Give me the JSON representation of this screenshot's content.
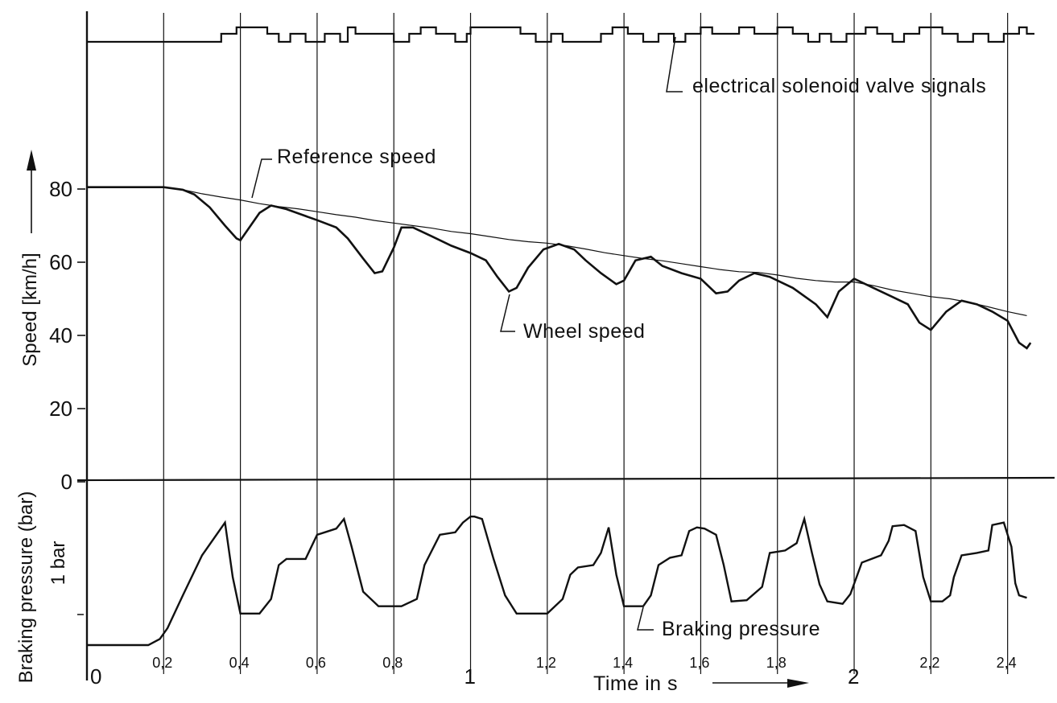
{
  "chart_data": {
    "type": "line",
    "title": "",
    "xlabel": "Time in s",
    "xlim": [
      0,
      2.47
    ],
    "x_ticks_small": [
      {
        "v": 0.2,
        "label": "0,2"
      },
      {
        "v": 0.4,
        "label": "0,4"
      },
      {
        "v": 0.6,
        "label": "0,6"
      },
      {
        "v": 0.8,
        "label": "0,8"
      },
      {
        "v": 1.2,
        "label": "1,2"
      },
      {
        "v": 1.4,
        "label": "1,4"
      },
      {
        "v": 1.6,
        "label": "1,6"
      },
      {
        "v": 1.8,
        "label": "1,8"
      },
      {
        "v": 2.2,
        "label": "2,2"
      },
      {
        "v": 2.4,
        "label": "2,4"
      }
    ],
    "x_ticks_big": [
      {
        "v": 0,
        "label": "0"
      },
      {
        "v": 1,
        "label": "1"
      },
      {
        "v": 2,
        "label": "2"
      }
    ],
    "speed_axis": {
      "label": "Speed [km/h]",
      "ylim": [
        0,
        80
      ],
      "ticks": [
        {
          "v": 0,
          "label": "0"
        },
        {
          "v": 20,
          "label": "20"
        },
        {
          "v": 40,
          "label": "40"
        },
        {
          "v": 60,
          "label": "60"
        },
        {
          "v": 80,
          "label": "80"
        }
      ]
    },
    "pressure_axis": {
      "label": "Braking pressure (bar)",
      "tick_label": "1 bar",
      "tick_value": 1,
      "ylim": [
        0,
        1.3
      ]
    },
    "grid": true,
    "annotations": {
      "valve": "electrical solenoid valve signals",
      "reference": "Reference speed",
      "wheel": "Wheel speed",
      "pressure": "Braking pressure"
    },
    "series": [
      {
        "name": "Reference speed",
        "axis": "speed",
        "x": [
          0,
          0.2,
          0.25,
          0.3,
          0.35,
          0.4,
          0.45,
          0.5,
          0.55,
          0.6,
          0.65,
          0.7,
          0.75,
          0.8,
          0.85,
          0.9,
          0.95,
          1.0,
          1.05,
          1.1,
          1.15,
          1.2,
          1.25,
          1.3,
          1.35,
          1.4,
          1.45,
          1.5,
          1.55,
          1.6,
          1.65,
          1.7,
          1.75,
          1.8,
          1.85,
          1.9,
          1.95,
          2.0,
          2.05,
          2.1,
          2.15,
          2.2,
          2.25,
          2.3,
          2.35,
          2.4,
          2.45
        ],
        "values": [
          80.5,
          80.5,
          79.8,
          78.7,
          77.8,
          77.0,
          76.0,
          75.2,
          74.6,
          73.8,
          73.0,
          72.3,
          71.4,
          70.7,
          70.0,
          69.3,
          68.4,
          67.8,
          67.0,
          66.2,
          65.6,
          65.2,
          64.5,
          63.6,
          62.6,
          61.8,
          61.0,
          60.4,
          59.6,
          58.8,
          58.0,
          57.4,
          57.2,
          56.5,
          55.6,
          55.0,
          54.6,
          54.6,
          53.6,
          52.4,
          51.5,
          50.6,
          50.0,
          49.0,
          47.8,
          46.5,
          45.4
        ]
      },
      {
        "name": "Wheel speed",
        "axis": "speed",
        "x": [
          0,
          0.2,
          0.25,
          0.28,
          0.32,
          0.36,
          0.39,
          0.4,
          0.42,
          0.45,
          0.48,
          0.52,
          0.56,
          0.6,
          0.65,
          0.68,
          0.72,
          0.75,
          0.77,
          0.8,
          0.82,
          0.85,
          0.9,
          0.95,
          1.0,
          1.04,
          1.07,
          1.1,
          1.12,
          1.15,
          1.19,
          1.23,
          1.27,
          1.3,
          1.34,
          1.38,
          1.4,
          1.43,
          1.47,
          1.5,
          1.55,
          1.6,
          1.64,
          1.67,
          1.7,
          1.74,
          1.78,
          1.84,
          1.9,
          1.93,
          1.96,
          2.0,
          2.05,
          2.1,
          2.14,
          2.17,
          2.2,
          2.24,
          2.28,
          2.32,
          2.36,
          2.4,
          2.43,
          2.45,
          2.46
        ],
        "values": [
          80.5,
          80.5,
          79.8,
          78.5,
          75.0,
          70.0,
          66.5,
          66.0,
          69.0,
          73.5,
          75.5,
          74.5,
          73.0,
          71.5,
          69.5,
          66.5,
          61.0,
          57.0,
          57.5,
          64.0,
          69.5,
          69.5,
          67.0,
          64.5,
          62.5,
          60.5,
          56.0,
          52.0,
          53.0,
          58.5,
          63.5,
          65.0,
          63.5,
          60.5,
          57.0,
          54.0,
          55.0,
          60.5,
          61.5,
          59.0,
          57.0,
          55.5,
          51.5,
          52.0,
          55.0,
          57.0,
          56.0,
          53.0,
          48.5,
          45.0,
          52.0,
          55.5,
          53.0,
          50.5,
          48.5,
          43.5,
          41.5,
          46.5,
          49.5,
          48.5,
          46.5,
          44.0,
          38.0,
          36.5,
          38.0
        ]
      },
      {
        "name": "Braking pressure",
        "axis": "pressure",
        "x": [
          0,
          0.16,
          0.19,
          0.21,
          0.25,
          0.3,
          0.36,
          0.38,
          0.4,
          0.45,
          0.48,
          0.5,
          0.52,
          0.57,
          0.6,
          0.62,
          0.65,
          0.67,
          0.69,
          0.72,
          0.76,
          0.82,
          0.86,
          0.88,
          0.92,
          0.96,
          0.98,
          1.0,
          1.01,
          1.03,
          1.06,
          1.09,
          1.12,
          1.2,
          1.24,
          1.26,
          1.28,
          1.32,
          1.34,
          1.36,
          1.38,
          1.4,
          1.45,
          1.47,
          1.49,
          1.52,
          1.55,
          1.57,
          1.59,
          1.61,
          1.64,
          1.66,
          1.68,
          1.72,
          1.76,
          1.78,
          1.82,
          1.85,
          1.87,
          1.89,
          1.91,
          1.93,
          1.97,
          1.99,
          2.02,
          2.07,
          2.09,
          2.1,
          2.13,
          2.16,
          2.18,
          2.2,
          2.23,
          2.25,
          2.26,
          2.28,
          2.32,
          2.35,
          2.36,
          2.39,
          2.41,
          2.42,
          2.43,
          2.45
        ],
        "values": [
          0.04,
          0.04,
          0.09,
          0.18,
          0.45,
          0.78,
          1.05,
          0.6,
          0.3,
          0.3,
          0.42,
          0.7,
          0.75,
          0.75,
          0.95,
          0.97,
          1.0,
          1.08,
          0.85,
          0.48,
          0.36,
          0.36,
          0.42,
          0.7,
          0.95,
          0.97,
          1.05,
          1.1,
          1.1,
          1.08,
          0.75,
          0.45,
          0.3,
          0.3,
          0.42,
          0.62,
          0.68,
          0.7,
          0.8,
          1.01,
          0.62,
          0.36,
          0.36,
          0.45,
          0.7,
          0.76,
          0.78,
          0.98,
          1.01,
          1.0,
          0.95,
          0.7,
          0.4,
          0.41,
          0.52,
          0.8,
          0.82,
          0.88,
          1.08,
          0.8,
          0.54,
          0.4,
          0.38,
          0.46,
          0.72,
          0.78,
          0.9,
          1.02,
          1.03,
          0.98,
          0.6,
          0.4,
          0.4,
          0.45,
          0.6,
          0.78,
          0.8,
          0.82,
          1.03,
          1.05,
          0.85,
          0.55,
          0.45,
          0.43
        ]
      },
      {
        "name": "electrical solenoid valve signals",
        "axis": "valve",
        "x": [
          0,
          0.35,
          0.39,
          0.47,
          0.5,
          0.53,
          0.57,
          0.62,
          0.66,
          0.68,
          0.7,
          0.8,
          0.84,
          0.87,
          0.91,
          0.96,
          0.99,
          1.0,
          1.13,
          1.17,
          1.21,
          1.24,
          1.34,
          1.37,
          1.41,
          1.45,
          1.49,
          1.53,
          1.56,
          1.6,
          1.63,
          1.7,
          1.74,
          1.8,
          1.84,
          1.88,
          1.91,
          1.94,
          1.98,
          2.03,
          2.06,
          2.1,
          2.13,
          2.17,
          2.23,
          2.27,
          2.31,
          2.35,
          2.39,
          2.43,
          2.45
        ],
        "values": [
          0,
          1,
          2,
          1,
          0,
          1,
          0,
          1,
          0,
          2,
          1,
          0,
          1,
          2,
          1,
          0,
          1,
          2,
          1,
          0,
          1,
          0,
          1,
          2,
          1,
          0,
          1,
          0,
          1,
          2,
          1,
          2,
          1,
          2,
          1,
          0,
          1,
          0,
          1,
          2,
          1,
          0,
          1,
          2,
          1,
          0,
          1,
          0,
          1,
          2,
          1
        ]
      }
    ]
  }
}
